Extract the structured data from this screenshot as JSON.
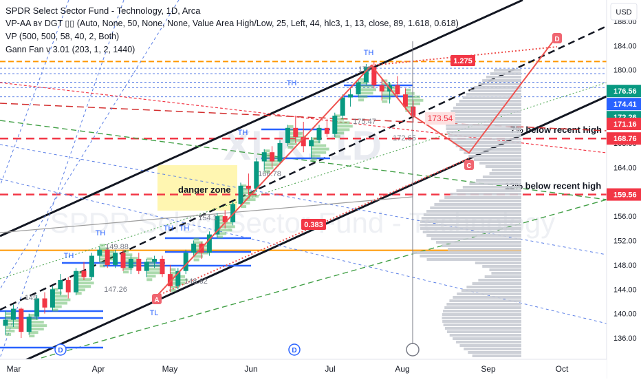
{
  "chart_data": {
    "type": "candlestick",
    "title": "SPDR Select Sector Fund - Technology, 1D, Arca",
    "watermark_top": "XLK, 1D",
    "watermark_bottom": "SPDR Select Sector Fund - Technology",
    "indicators": [
      "VP-AA ʙʏ DGT ▯▯ (Auto, None, 50, None, None, Value Area High/Low, 25, Left, 44, hlc3, 1, 13, close, 89, 1.618, 0.618)",
      "VP (500, 500, 58, 40, 2, Both)",
      "Gann Fan v 3.01 (203, 1, 2, 1440)"
    ],
    "currency": "USD",
    "y_axis": {
      "range": [
        132.5,
        191.5
      ],
      "ticks": [
        136,
        140,
        144,
        148,
        152,
        156,
        160,
        164,
        168,
        172,
        176,
        180,
        184,
        188
      ]
    },
    "x_axis": {
      "labels": [
        "Mar",
        "Apr",
        "May",
        "Jun",
        "Jul",
        "Aug",
        "Sep",
        "Oct"
      ]
    },
    "price_badges": [
      {
        "value": "176.56",
        "color": "#089981"
      },
      {
        "value": "174.41",
        "color": "#2962ff"
      },
      {
        "value": "172.26",
        "color": "#089981"
      },
      {
        "value": "171.16",
        "color": "#f23645"
      },
      {
        "value": "168.76",
        "color": "#f23645"
      },
      {
        "value": "159.56",
        "color": "#f23645"
      }
    ],
    "support_levels": [
      {
        "price": 168.76,
        "label": "7% below recent high"
      },
      {
        "price": 159.56,
        "label": "12% below recent high"
      }
    ],
    "annotations": {
      "danger_zone": "danger zone",
      "fib_1275": "1.275",
      "fib_0383": "0.383",
      "target_level": "173.54",
      "wave_points": [
        "A",
        "C",
        "D"
      ],
      "pivot_labels": [
        "TH",
        "TH",
        "TH",
        "TH",
        "TH",
        "TH",
        "TH",
        "TL"
      ],
      "vp_values": [
        "149.88",
        "147.26",
        "148.62",
        "154.1",
        "166.78",
        "175.47",
        "172.65",
        "179",
        "145"
      ],
      "event_markers": [
        "D",
        "D"
      ]
    },
    "ohlc": [
      [
        138.0,
        140.5,
        136.5,
        139.0
      ],
      [
        139.0,
        141.5,
        137.8,
        140.8
      ],
      [
        140.8,
        141.0,
        136.0,
        137.0
      ],
      [
        137.0,
        140.0,
        136.5,
        139.5
      ],
      [
        139.5,
        143.0,
        139.0,
        142.5
      ],
      [
        142.5,
        143.5,
        140.0,
        141.0
      ],
      [
        141.0,
        144.5,
        140.5,
        144.0
      ],
      [
        144.0,
        146.5,
        143.0,
        145.5
      ],
      [
        145.5,
        146.0,
        142.5,
        143.5
      ],
      [
        143.5,
        147.5,
        143.0,
        147.0
      ],
      [
        147.0,
        148.5,
        145.5,
        146.0
      ],
      [
        146.0,
        150.0,
        145.5,
        149.5
      ],
      [
        149.5,
        151.0,
        148.5,
        150.5
      ],
      [
        150.5,
        151.0,
        147.5,
        148.0
      ],
      [
        148.0,
        150.5,
        147.5,
        150.0
      ],
      [
        150.0,
        150.5,
        147.0,
        147.5
      ],
      [
        147.5,
        149.5,
        146.5,
        149.0
      ],
      [
        149.0,
        150.0,
        146.5,
        147.0
      ],
      [
        147.0,
        149.0,
        146.0,
        148.5
      ],
      [
        148.5,
        149.5,
        147.5,
        149.0
      ],
      [
        149.0,
        149.5,
        146.0,
        146.5
      ],
      [
        146.5,
        148.0,
        143.5,
        144.5
      ],
      [
        144.5,
        147.5,
        144.0,
        147.0
      ],
      [
        147.0,
        150.5,
        146.5,
        150.0
      ],
      [
        150.0,
        152.0,
        149.5,
        151.5
      ],
      [
        151.5,
        151.8,
        149.0,
        150.0
      ],
      [
        150.0,
        153.5,
        149.5,
        153.0
      ],
      [
        153.0,
        156.5,
        152.5,
        156.0
      ],
      [
        156.0,
        157.0,
        154.0,
        155.0
      ],
      [
        155.0,
        158.5,
        154.5,
        158.0
      ],
      [
        158.0,
        161.5,
        157.5,
        161.0
      ],
      [
        161.0,
        163.0,
        159.5,
        160.5
      ],
      [
        160.5,
        165.5,
        160.0,
        165.0
      ],
      [
        165.0,
        167.0,
        163.5,
        166.5
      ],
      [
        166.5,
        167.5,
        164.0,
        165.0
      ],
      [
        165.0,
        168.5,
        164.5,
        168.0
      ],
      [
        168.0,
        171.0,
        167.5,
        170.5
      ],
      [
        170.5,
        172.5,
        168.0,
        169.0
      ],
      [
        169.0,
        171.5,
        166.5,
        167.5
      ],
      [
        167.5,
        169.0,
        165.5,
        168.5
      ],
      [
        168.5,
        171.0,
        168.0,
        170.5
      ],
      [
        170.5,
        172.0,
        169.0,
        169.5
      ],
      [
        169.5,
        173.0,
        169.0,
        172.5
      ],
      [
        172.5,
        176.0,
        172.0,
        175.5
      ],
      [
        175.5,
        177.0,
        174.0,
        176.0
      ],
      [
        176.0,
        178.5,
        175.5,
        178.0
      ],
      [
        178.0,
        181.0,
        177.5,
        180.5
      ],
      [
        180.5,
        181.5,
        177.0,
        177.5
      ],
      [
        177.5,
        178.5,
        175.0,
        176.5
      ],
      [
        176.5,
        178.0,
        174.5,
        177.5
      ],
      [
        177.5,
        179.0,
        175.5,
        176.0
      ],
      [
        176.0,
        177.0,
        173.5,
        174.0
      ],
      [
        174.0,
        175.0,
        171.5,
        172.5
      ]
    ],
    "projection_path": [
      {
        "label": "C",
        "price": 166.4
      },
      {
        "label": "D",
        "price": 185.6
      }
    ]
  }
}
